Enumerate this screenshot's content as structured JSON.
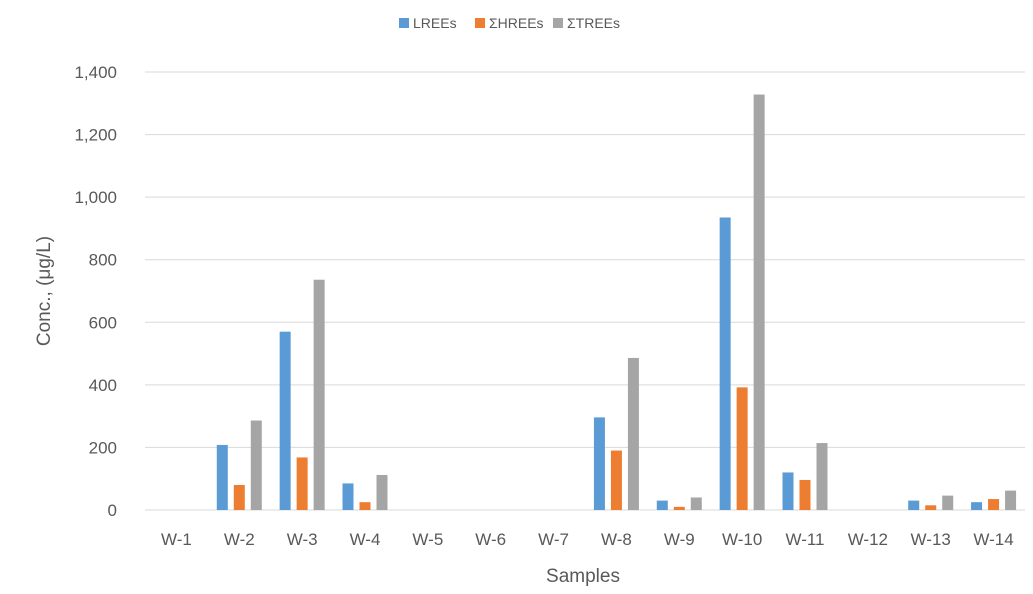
{
  "chart_data": {
    "type": "bar",
    "title": "",
    "xlabel": "Samples",
    "ylabel": "Conc., (μg/L)",
    "ylim": [
      0,
      1400
    ],
    "yticks": [
      0,
      200,
      400,
      600,
      800,
      1000,
      1200,
      1400
    ],
    "ytick_labels": [
      "0",
      "200",
      "400",
      "600",
      "800",
      "1,000",
      "1,200",
      "1,400"
    ],
    "grid": true,
    "legend_position": "top-center",
    "categories": [
      "W-1",
      "W-2",
      "W-3",
      "W-4",
      "W-5",
      "W-6",
      "W-7",
      "W-8",
      "W-9",
      "W-10",
      "W-11",
      "W-12",
      "W-13",
      "W-14"
    ],
    "series": [
      {
        "name": "LREEs",
        "color": "#5B9BD5",
        "values": [
          0,
          208,
          570,
          85,
          0,
          0,
          0,
          296,
          30,
          935,
          120,
          0,
          30,
          25
        ]
      },
      {
        "name": "ΣHREEs",
        "color": "#ED7D31",
        "values": [
          0,
          80,
          168,
          25,
          0,
          0,
          0,
          190,
          10,
          392,
          96,
          0,
          15,
          35
        ]
      },
      {
        "name": "ΣTREEs",
        "color": "#A5A5A5",
        "values": [
          0,
          286,
          736,
          112,
          0,
          0,
          0,
          486,
          40,
          1328,
          214,
          0,
          46,
          62
        ]
      }
    ]
  }
}
